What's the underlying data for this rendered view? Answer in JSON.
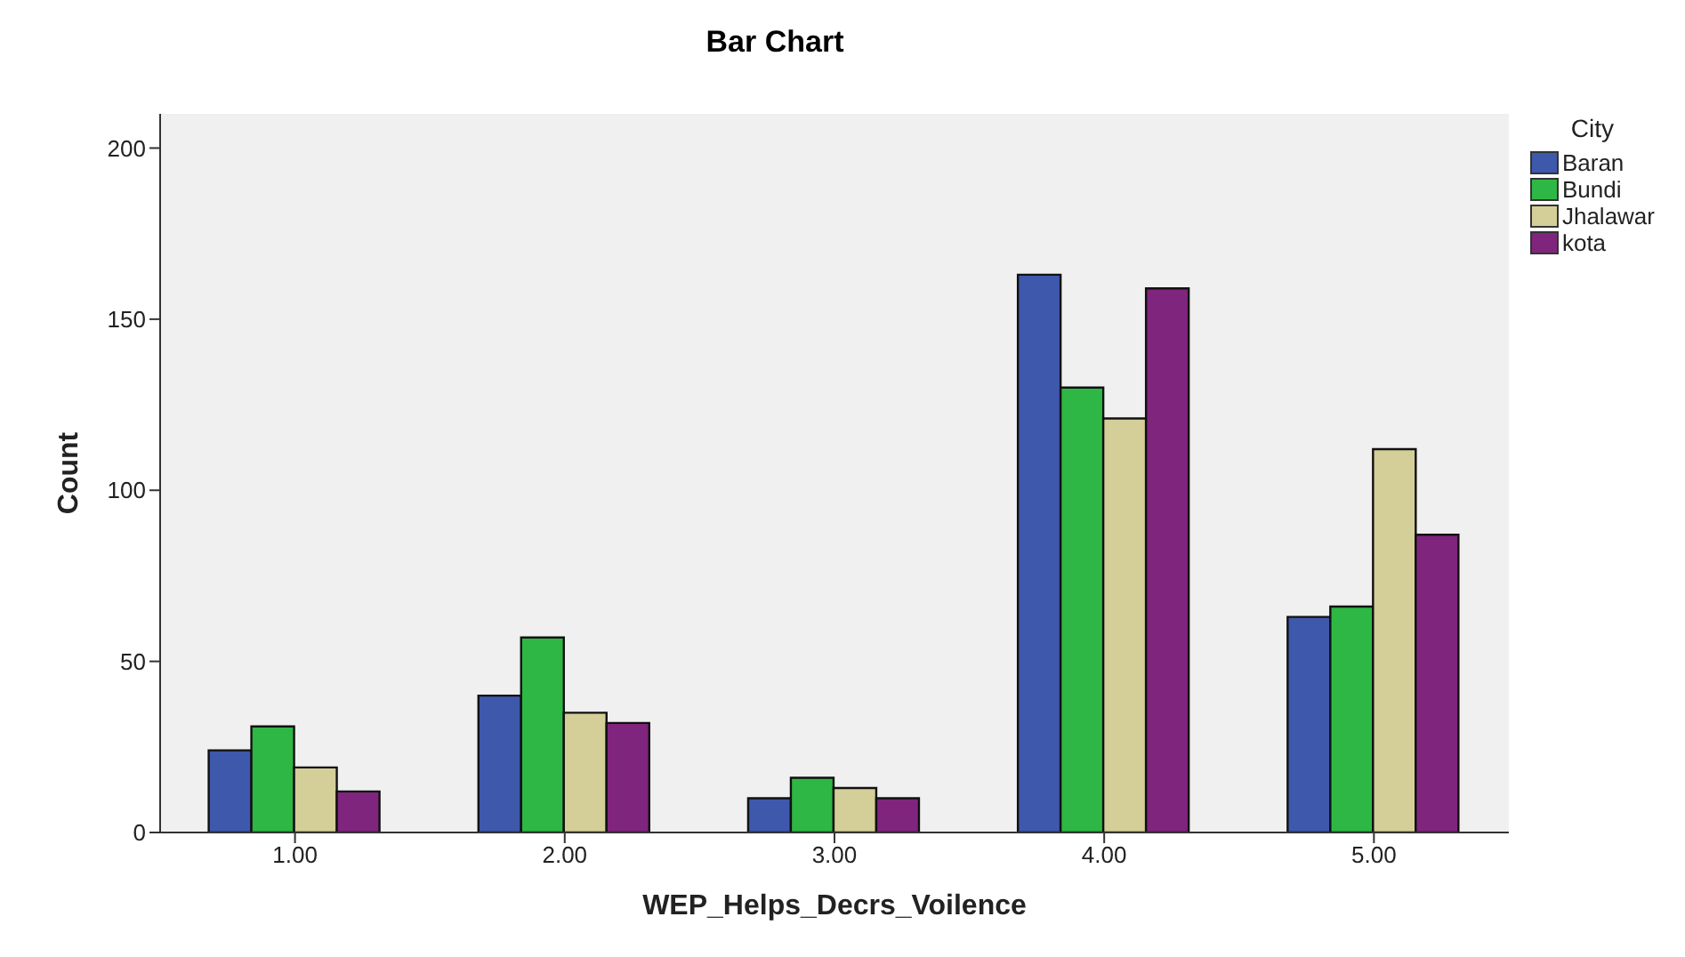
{
  "chart_data": {
    "type": "bar",
    "title": "Bar Chart",
    "xlabel": "WEP_Helps_Decrs_Voilence",
    "ylabel": "Count",
    "legend_title": "City",
    "categories": [
      "1.00",
      "2.00",
      "3.00",
      "4.00",
      "5.00"
    ],
    "series": [
      {
        "name": "Baran",
        "color": "#3e58ac",
        "values": [
          24,
          40,
          10,
          163,
          63
        ]
      },
      {
        "name": "Bundi",
        "color": "#2eb744",
        "values": [
          31,
          57,
          16,
          130,
          66
        ]
      },
      {
        "name": "Jhalawar",
        "color": "#d4cf98",
        "values": [
          19,
          35,
          13,
          121,
          112
        ]
      },
      {
        "name": "kota",
        "color": "#80257e",
        "values": [
          12,
          32,
          10,
          159,
          87
        ]
      }
    ],
    "ylim": [
      0,
      210
    ],
    "yticks": [
      0,
      50,
      100,
      150,
      200
    ],
    "grid": false,
    "legend": "top right"
  }
}
